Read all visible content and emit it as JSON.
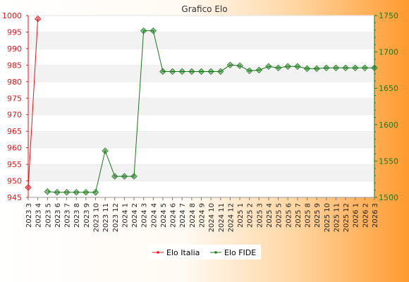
{
  "chart_data": {
    "type": "line",
    "title": "Grafico Elo",
    "categories": [
      "2023 3",
      "2023 4",
      "2023 5",
      "2023 6",
      "2023 7",
      "2023 8",
      "2023 9",
      "2023 10",
      "2023 11",
      "2023 12",
      "2024 1",
      "2024 2",
      "2024 3",
      "2024 4",
      "2024 5",
      "2024 6",
      "2024 7",
      "2024 8",
      "2024 9",
      "2024 10",
      "2024 11",
      "2024 12",
      "2025 1",
      "2025 2",
      "2025 3",
      "2025 4",
      "2025 5",
      "2025 6",
      "2025 7",
      "2025 8",
      "2025 9",
      "2025 10",
      "2025 11",
      "2025 12",
      "2026 1",
      "2026 2",
      "2026 3"
    ],
    "left_axis": {
      "ylim": [
        945,
        1000
      ],
      "ticks": [
        945,
        950,
        955,
        960,
        965,
        970,
        975,
        980,
        985,
        990,
        995,
        1000
      ],
      "color": "#e8141a"
    },
    "right_axis": {
      "ylim": [
        1500,
        1750
      ],
      "ticks": [
        1500,
        1550,
        1600,
        1650,
        1700,
        1750
      ],
      "color": "#1a7a1a"
    },
    "series": [
      {
        "name": "Elo Italia",
        "axis": "left",
        "color": "#e8141a",
        "values": [
          948,
          999,
          null,
          null,
          null,
          null,
          null,
          null,
          null,
          null,
          null,
          null,
          null,
          null,
          null,
          null,
          null,
          null,
          null,
          null,
          null,
          null,
          null,
          null,
          null,
          null,
          null,
          null,
          null,
          null,
          null,
          null,
          null,
          null,
          null,
          null,
          null
        ]
      },
      {
        "name": "Elo FIDE",
        "axis": "right",
        "color": "#1a7a1a",
        "values": [
          null,
          null,
          1508,
          1507,
          1507,
          1507,
          1507,
          1507,
          1564,
          1529,
          1529,
          1529,
          1729,
          1729,
          1673,
          1673,
          1673,
          1673,
          1673,
          1673,
          1673,
          1682,
          1681,
          1674,
          1675,
          1680,
          1678,
          1680,
          1680,
          1677,
          1677,
          1678,
          1678,
          1678,
          1678,
          1678,
          1678
        ]
      }
    ],
    "grid": true,
    "legend": "bottom-center"
  }
}
